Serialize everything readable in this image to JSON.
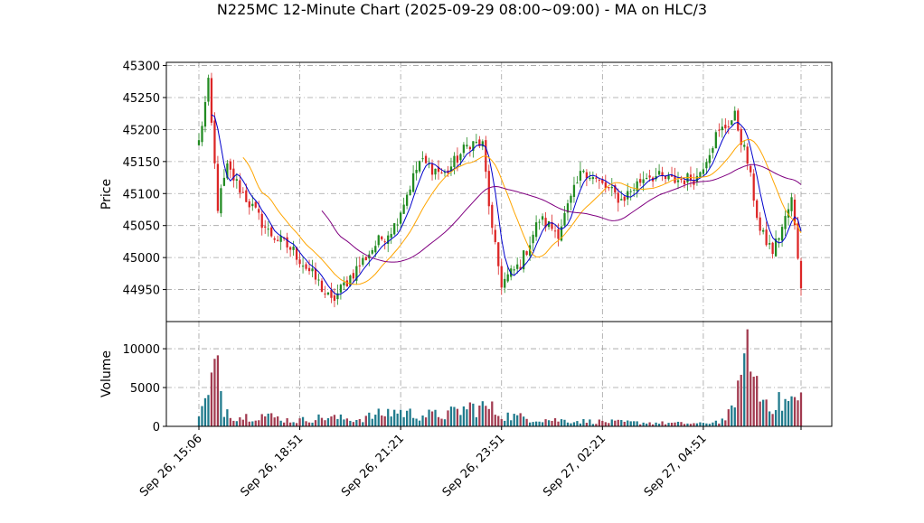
{
  "chart_data": {
    "type": "candlestick",
    "title": "N225MC 12-Minute Chart (2025-09-29 08:00~09:00) - MA on HLC/3",
    "price_panel": {
      "ylabel": "Price",
      "ylim": [
        44900,
        45305
      ],
      "yticks": [
        44950,
        45000,
        45050,
        45100,
        45150,
        45200,
        45250,
        45300
      ],
      "ytick_labels": [
        "44950",
        "45000",
        "45050",
        "45100",
        "45150",
        "45200",
        "45250",
        "45300"
      ],
      "grid": true,
      "close_path_keypoints": [
        {
          "i": 0,
          "v": 45180
        },
        {
          "i": 3,
          "v": 45270
        },
        {
          "i": 6,
          "v": 45080
        },
        {
          "i": 9,
          "v": 45140
        },
        {
          "i": 14,
          "v": 45100
        },
        {
          "i": 22,
          "v": 45040
        },
        {
          "i": 30,
          "v": 45010
        },
        {
          "i": 38,
          "v": 44960
        },
        {
          "i": 42,
          "v": 44930
        },
        {
          "i": 48,
          "v": 44970
        },
        {
          "i": 56,
          "v": 45020
        },
        {
          "i": 62,
          "v": 45050
        },
        {
          "i": 70,
          "v": 45150
        },
        {
          "i": 78,
          "v": 45130
        },
        {
          "i": 86,
          "v": 45180
        },
        {
          "i": 90,
          "v": 45175
        },
        {
          "i": 93,
          "v": 45040
        },
        {
          "i": 96,
          "v": 44960
        },
        {
          "i": 102,
          "v": 44990
        },
        {
          "i": 108,
          "v": 45060
        },
        {
          "i": 114,
          "v": 45040
        },
        {
          "i": 122,
          "v": 45140
        },
        {
          "i": 126,
          "v": 45120
        },
        {
          "i": 134,
          "v": 45090
        },
        {
          "i": 142,
          "v": 45130
        },
        {
          "i": 150,
          "v": 45120
        },
        {
          "i": 158,
          "v": 45125
        },
        {
          "i": 164,
          "v": 45190
        },
        {
          "i": 170,
          "v": 45220
        },
        {
          "i": 174,
          "v": 45150
        },
        {
          "i": 178,
          "v": 45040
        },
        {
          "i": 182,
          "v": 45010
        },
        {
          "i": 186,
          "v": 45060
        },
        {
          "i": 188,
          "v": 45090
        },
        {
          "i": 191,
          "v": 44960
        }
      ],
      "moving_averages": [
        {
          "color": "#0000cc",
          "period": 5
        },
        {
          "color": "#ffa500",
          "period": 15
        },
        {
          "color": "#800080",
          "period": 40
        }
      ]
    },
    "volume_panel": {
      "ylabel": "Volume",
      "ylim": [
        0,
        13500
      ],
      "yticks": [
        0,
        5000,
        10000
      ],
      "ytick_labels": [
        "0",
        "5000",
        "10000"
      ],
      "volume_keypoints": [
        {
          "i": 0,
          "v": 2000
        },
        {
          "i": 3,
          "v": 3500
        },
        {
          "i": 5,
          "v": 8700
        },
        {
          "i": 8,
          "v": 2500
        },
        {
          "i": 12,
          "v": 1200
        },
        {
          "i": 20,
          "v": 1500
        },
        {
          "i": 30,
          "v": 700
        },
        {
          "i": 40,
          "v": 1200
        },
        {
          "i": 50,
          "v": 900
        },
        {
          "i": 62,
          "v": 2000
        },
        {
          "i": 70,
          "v": 1500
        },
        {
          "i": 78,
          "v": 1500
        },
        {
          "i": 86,
          "v": 2500
        },
        {
          "i": 92,
          "v": 2500
        },
        {
          "i": 96,
          "v": 1500
        },
        {
          "i": 106,
          "v": 1000
        },
        {
          "i": 120,
          "v": 700
        },
        {
          "i": 140,
          "v": 500
        },
        {
          "i": 160,
          "v": 350
        },
        {
          "i": 166,
          "v": 800
        },
        {
          "i": 170,
          "v": 2200
        },
        {
          "i": 174,
          "v": 8000
        },
        {
          "i": 178,
          "v": 3800
        },
        {
          "i": 184,
          "v": 3000
        },
        {
          "i": 191,
          "v": 3600
        }
      ],
      "spikes": [
        {
          "i": 5,
          "v": 8700
        },
        {
          "i": 174,
          "v": 12500
        },
        {
          "i": 171,
          "v": 5900
        },
        {
          "i": 176,
          "v": 6400
        },
        {
          "i": 177,
          "v": 6500
        }
      ]
    },
    "bar_count": 192,
    "x_ticks": [
      {
        "i": 0,
        "label": "Sep 26, 15:06"
      },
      {
        "i": 32,
        "label": "Sep 26, 18:51"
      },
      {
        "i": 64,
        "label": "Sep 26, 21:21"
      },
      {
        "i": 96,
        "label": "Sep 26, 23:51"
      },
      {
        "i": 128,
        "label": "Sep 27, 02:21"
      },
      {
        "i": 160,
        "label": "Sep 27, 04:51"
      }
    ],
    "colors": {
      "up": "#228b22",
      "down": "#dc2626",
      "volume_up": "#1f7a8c",
      "volume_down": "#a23b50",
      "grid": "#a0a0a0"
    }
  }
}
